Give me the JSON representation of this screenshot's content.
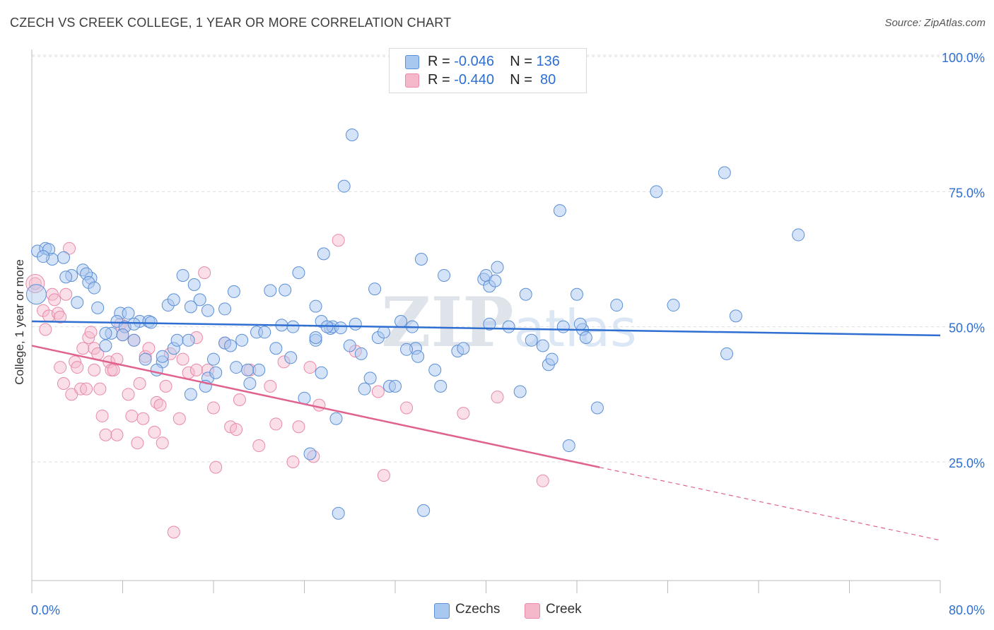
{
  "header": {
    "title": "CZECH VS CREEK COLLEGE, 1 YEAR OR MORE CORRELATION CHART",
    "source": "Source: ZipAtlas.com"
  },
  "watermark": "ZIPatlas",
  "legend": {
    "rows": [
      {
        "r_label": "R = ",
        "r_value": "-0.046",
        "n_label": "N = ",
        "n_value": "136",
        "color": "#a9c8f0"
      },
      {
        "r_label": "R = ",
        "r_value": "-0.440",
        "n_label": "N = ",
        "n_value": " 80",
        "color": "#f5b8cb"
      }
    ]
  },
  "bottom_legend": [
    {
      "label": "Czechs",
      "color": "#a9c8f0"
    },
    {
      "label": "Creek",
      "color": "#f5b8cb"
    }
  ],
  "colors": {
    "czechs_fill": "#a9c8f0",
    "czechs_stroke": "#5b8fd6",
    "czechs_line": "#2e6fd1",
    "creek_fill": "#f5b8cb",
    "creek_stroke": "#e88aa8",
    "creek_line": "#e0628f",
    "axis_text": "#2e6fd1",
    "grid": "#dddddd"
  },
  "chart_data": {
    "type": "scatter",
    "title": "CZECH VS CREEK COLLEGE, 1 YEAR OR MORE CORRELATION CHART",
    "xlabel": "",
    "ylabel": "College, 1 year or more",
    "xlim": [
      0,
      80
    ],
    "ylim": [
      5,
      105
    ],
    "x_tick_labels": [
      "0.0%",
      "80.0%"
    ],
    "y_ticks": [
      25,
      50,
      75,
      100
    ],
    "y_tick_labels": [
      "25.0%",
      "50.0%",
      "75.0%",
      "100.0%"
    ],
    "grid": true,
    "legend_position": "top-center",
    "series": [
      {
        "name": "Czechs",
        "r": -0.046,
        "n": 136,
        "trend": {
          "x": [
            0,
            80
          ],
          "y": [
            51.0,
            48.4
          ]
        },
        "points": [
          [
            0.5,
            64
          ],
          [
            1.2,
            64.5
          ],
          [
            1.5,
            64.3
          ],
          [
            1.8,
            62.5
          ],
          [
            1.0,
            63.0
          ],
          [
            2.8,
            62.8
          ],
          [
            3.5,
            59.5
          ],
          [
            4.5,
            60.5
          ],
          [
            5.2,
            59.0
          ],
          [
            3.0,
            59.2
          ],
          [
            4.8,
            59.8
          ],
          [
            5.0,
            58.2
          ],
          [
            5.5,
            57.2
          ],
          [
            4.0,
            54.5
          ],
          [
            5.8,
            53.5
          ],
          [
            7.8,
            52.5
          ],
          [
            8.5,
            52.5
          ],
          [
            9.5,
            51.0
          ],
          [
            10.3,
            51.0
          ],
          [
            7.5,
            51.0
          ],
          [
            8.2,
            50.0
          ],
          [
            7.0,
            48.8
          ],
          [
            6.5,
            48.8
          ],
          [
            8.0,
            48.5
          ],
          [
            6.5,
            46.5
          ],
          [
            9.0,
            47.5
          ],
          [
            10.0,
            44.0
          ],
          [
            11.5,
            43.5
          ],
          [
            11.5,
            44.5
          ],
          [
            12.5,
            46.0
          ],
          [
            12.8,
            47.5
          ],
          [
            13.8,
            47.5
          ],
          [
            12.0,
            54.0
          ],
          [
            12.5,
            55.0
          ],
          [
            13.3,
            59.5
          ],
          [
            14.3,
            57.8
          ],
          [
            14.8,
            55.0
          ],
          [
            15.5,
            53.0
          ],
          [
            17.0,
            53.3
          ],
          [
            17.8,
            56.5
          ],
          [
            16.0,
            44.0
          ],
          [
            15.5,
            40.5
          ],
          [
            16.2,
            41.5
          ],
          [
            15.3,
            39.0
          ],
          [
            14.0,
            37.5
          ],
          [
            17.0,
            47.0
          ],
          [
            17.5,
            46.5
          ],
          [
            18.5,
            47.5
          ],
          [
            18.0,
            42.5
          ],
          [
            19.0,
            42.0
          ],
          [
            20.0,
            42.0
          ],
          [
            19.2,
            39.5
          ],
          [
            19.8,
            49.0
          ],
          [
            20.5,
            49.0
          ],
          [
            21.0,
            56.7
          ],
          [
            21.5,
            46.0
          ],
          [
            22.3,
            56.8
          ],
          [
            22.8,
            44.3
          ],
          [
            23.0,
            50.0
          ],
          [
            23.5,
            60.0
          ],
          [
            24.0,
            36.8
          ],
          [
            24.5,
            26.5
          ],
          [
            25.0,
            47.5
          ],
          [
            25.0,
            48.0
          ],
          [
            25.5,
            51.0
          ],
          [
            25.5,
            41.5
          ],
          [
            25.0,
            53.8
          ],
          [
            26.3,
            49.7
          ],
          [
            26.5,
            50.0
          ],
          [
            25.7,
            63.5
          ],
          [
            26.0,
            50.0
          ],
          [
            26.8,
            33.0
          ],
          [
            27.0,
            15.5
          ],
          [
            27.5,
            76.0
          ],
          [
            28.0,
            46.5
          ],
          [
            28.2,
            85.5
          ],
          [
            28.5,
            50.5
          ],
          [
            29.0,
            45.0
          ],
          [
            29.3,
            38.5
          ],
          [
            29.8,
            40.5
          ],
          [
            30.2,
            57.0
          ],
          [
            30.5,
            48.0
          ],
          [
            31.0,
            49.0
          ],
          [
            31.5,
            39.0
          ],
          [
            32.0,
            39.0
          ],
          [
            32.5,
            51.0
          ],
          [
            33.5,
            50.0
          ],
          [
            33.8,
            46.0
          ],
          [
            34.0,
            44.5
          ],
          [
            34.3,
            62.5
          ],
          [
            34.5,
            16.0
          ],
          [
            35.5,
            42.0
          ],
          [
            36.0,
            39.0
          ],
          [
            36.3,
            59.5
          ],
          [
            37.5,
            45.5
          ],
          [
            38.0,
            46.0
          ],
          [
            39.8,
            58.8
          ],
          [
            40.0,
            59.5
          ],
          [
            40.3,
            57.5
          ],
          [
            40.8,
            58.5
          ],
          [
            41.0,
            61.0
          ],
          [
            42.0,
            50.0
          ],
          [
            43.0,
            38.0
          ],
          [
            43.5,
            56.0
          ],
          [
            44.0,
            47.5
          ],
          [
            45.0,
            46.5
          ],
          [
            45.5,
            43.0
          ],
          [
            45.8,
            44.0
          ],
          [
            46.5,
            71.5
          ],
          [
            46.8,
            50.0
          ],
          [
            47.3,
            28.0
          ],
          [
            48.0,
            56.0
          ],
          [
            48.5,
            49.5
          ],
          [
            48.8,
            48.0
          ],
          [
            48.3,
            50.5
          ],
          [
            49.8,
            35.0
          ],
          [
            51.5,
            54.0
          ],
          [
            55.0,
            75.0
          ],
          [
            56.5,
            54.0
          ],
          [
            61.0,
            78.5
          ],
          [
            61.2,
            45.0
          ],
          [
            62.0,
            52.0
          ],
          [
            67.5,
            67.0
          ],
          [
            40.3,
            50.5
          ],
          [
            33.0,
            45.8
          ],
          [
            27.2,
            49.8
          ],
          [
            22.0,
            50.3
          ],
          [
            14.0,
            53.7
          ],
          [
            11.0,
            42.0
          ],
          [
            9.0,
            50.5
          ],
          [
            10.5,
            50.8
          ]
        ]
      },
      {
        "name": "Creek",
        "r": -0.44,
        "n": 80,
        "trend": {
          "x": [
            0,
            50
          ],
          "y": [
            46.5,
            24.0
          ]
        },
        "trend_dashed": {
          "x": [
            50,
            80
          ],
          "y": [
            24.0,
            10.5
          ]
        },
        "points": [
          [
            0.3,
            58.0
          ],
          [
            1.0,
            53.0
          ],
          [
            1.2,
            49.5
          ],
          [
            1.5,
            52.0
          ],
          [
            1.8,
            56.0
          ],
          [
            2.0,
            55.0
          ],
          [
            2.3,
            52.5
          ],
          [
            2.5,
            51.8
          ],
          [
            3.0,
            56.0
          ],
          [
            3.3,
            64.5
          ],
          [
            2.5,
            42.5
          ],
          [
            2.8,
            39.5
          ],
          [
            3.5,
            37.5
          ],
          [
            3.8,
            43.5
          ],
          [
            4.0,
            42.5
          ],
          [
            4.5,
            46.0
          ],
          [
            4.3,
            38.5
          ],
          [
            4.8,
            38.5
          ],
          [
            5.0,
            48.0
          ],
          [
            5.2,
            49.0
          ],
          [
            5.5,
            46.0
          ],
          [
            5.8,
            45.0
          ],
          [
            5.5,
            42.0
          ],
          [
            6.0,
            38.5
          ],
          [
            6.2,
            33.5
          ],
          [
            6.8,
            43.5
          ],
          [
            7.0,
            42.0
          ],
          [
            7.2,
            42.0
          ],
          [
            7.5,
            44.0
          ],
          [
            7.8,
            50.5
          ],
          [
            8.0,
            48.5
          ],
          [
            8.2,
            50.0
          ],
          [
            8.5,
            37.5
          ],
          [
            8.8,
            33.5
          ],
          [
            9.0,
            47.5
          ],
          [
            9.3,
            28.5
          ],
          [
            9.5,
            39.5
          ],
          [
            9.8,
            33.0
          ],
          [
            10.0,
            44.5
          ],
          [
            10.3,
            46.0
          ],
          [
            10.8,
            30.5
          ],
          [
            11.0,
            36.0
          ],
          [
            11.3,
            35.5
          ],
          [
            11.5,
            28.5
          ],
          [
            11.8,
            39.0
          ],
          [
            12.2,
            45.0
          ],
          [
            12.5,
            12.0
          ],
          [
            13.0,
            33.0
          ],
          [
            13.3,
            44.0
          ],
          [
            13.8,
            41.5
          ],
          [
            14.5,
            42.0
          ],
          [
            15.2,
            60.0
          ],
          [
            15.5,
            42.0
          ],
          [
            16.0,
            35.0
          ],
          [
            16.2,
            24.0
          ],
          [
            17.0,
            47.0
          ],
          [
            17.5,
            31.5
          ],
          [
            18.0,
            31.0
          ],
          [
            18.3,
            36.5
          ],
          [
            19.2,
            42.0
          ],
          [
            20.0,
            28.0
          ],
          [
            21.0,
            39.0
          ],
          [
            21.5,
            32.0
          ],
          [
            22.2,
            43.5
          ],
          [
            23.0,
            25.0
          ],
          [
            23.5,
            31.5
          ],
          [
            24.5,
            42.5
          ],
          [
            24.8,
            26.0
          ],
          [
            25.3,
            35.5
          ],
          [
            27.0,
            66.0
          ],
          [
            28.5,
            45.5
          ],
          [
            30.5,
            38.0
          ],
          [
            31.0,
            22.5
          ],
          [
            33.0,
            35.0
          ],
          [
            38.0,
            34.0
          ],
          [
            41.0,
            37.0
          ],
          [
            45.0,
            21.5
          ],
          [
            6.5,
            30.0
          ],
          [
            7.5,
            30.0
          ],
          [
            14.5,
            48.0
          ]
        ]
      }
    ]
  }
}
